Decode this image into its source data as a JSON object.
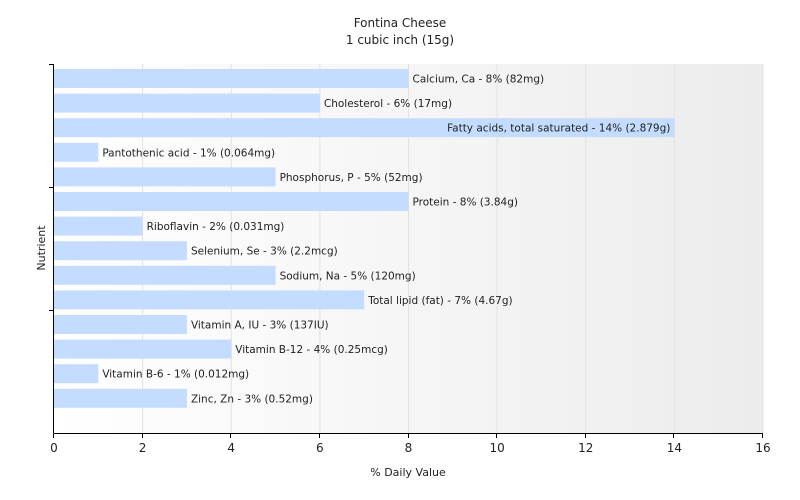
{
  "chart_data": {
    "type": "bar",
    "orientation": "horizontal",
    "title": "Fontina Cheese",
    "subtitle": "1 cubic inch (15g)",
    "xlabel": "% Daily Value",
    "ylabel": "Nutrient",
    "xlim": [
      0,
      16
    ],
    "xticks": [
      "0",
      "2",
      "4",
      "6",
      "8",
      "10",
      "12",
      "14",
      "16"
    ],
    "grid": true,
    "bar_color": "#c4dcff",
    "categories": [
      "Calcium, Ca",
      "Cholesterol",
      "Fatty acids, total saturated",
      "Pantothenic acid",
      "Phosphorus, P",
      "Protein",
      "Riboflavin",
      "Selenium, Se",
      "Sodium, Na",
      "Total lipid (fat)",
      "Vitamin A, IU",
      "Vitamin B-12",
      "Vitamin B-6",
      "Zinc, Zn"
    ],
    "values": [
      8,
      6,
      14,
      1,
      5,
      8,
      2,
      3,
      5,
      7,
      3,
      4,
      1,
      3
    ],
    "labels": [
      "Calcium, Ca - 8% (82mg)",
      "Cholesterol - 6% (17mg)",
      "Fatty acids, total saturated - 14% (2.879g)",
      "Pantothenic acid - 1% (0.064mg)",
      "Phosphorus, P - 5% (52mg)",
      "Protein - 8% (3.84g)",
      "Riboflavin - 2% (0.031mg)",
      "Selenium, Se - 3% (2.2mcg)",
      "Sodium, Na - 5% (120mg)",
      "Total lipid (fat) - 7% (4.67g)",
      "Vitamin A, IU - 3% (137IU)",
      "Vitamin B-12 - 4% (0.25mcg)",
      "Vitamin B-6 - 1% (0.012mg)",
      "Zinc, Zn - 3% (0.52mg)"
    ]
  }
}
